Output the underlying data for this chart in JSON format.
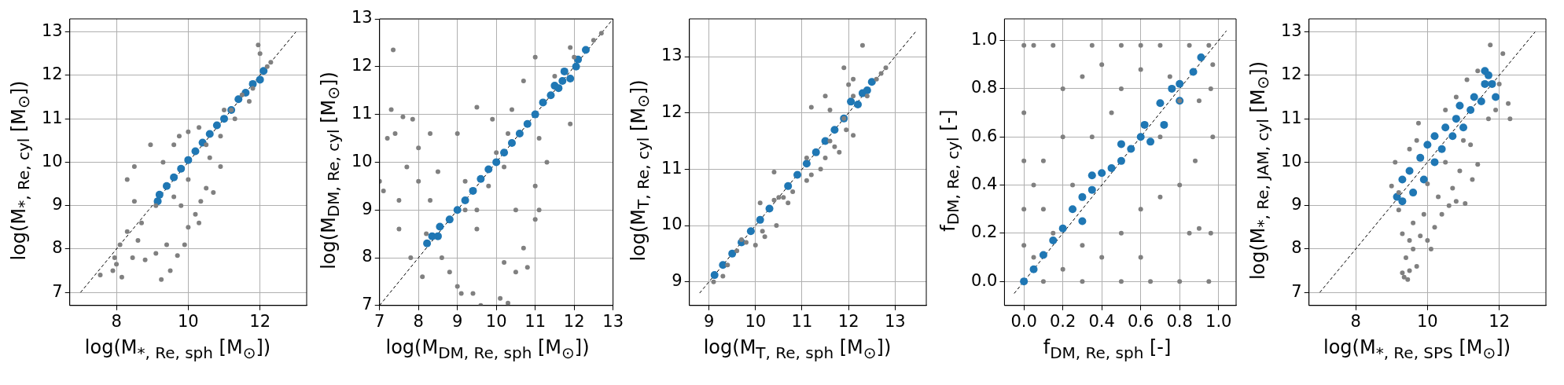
{
  "chart_data": [
    {
      "type": "scatter",
      "xlabel": "log(M$_{*, Re, sph}$ [M$_{⊙}$])",
      "xlim": [
        6.7,
        13.3
      ],
      "ylim": [
        6.7,
        13.3
      ],
      "xticks": [
        8,
        10,
        12
      ],
      "yticks": [
        7,
        8,
        9,
        10,
        11,
        12,
        13
      ],
      "grid": true,
      "ylabel": "log(M$_{*, Re, cyl}$ [M$_{⊙}$])",
      "series": [
        {
          "type": "scatter",
          "color": "#808080",
          "marker": "circle",
          "x": [
            7.55,
            7.9,
            8.15,
            8.0,
            7.95,
            8.1,
            8.3,
            8.45,
            8.6,
            8.7,
            8.8,
            9.1,
            9.25,
            9.5,
            9.4,
            9.7,
            9.9,
            10.0,
            10.2,
            10.3,
            9.1,
            8.5,
            8.3,
            8.5,
            8.95,
            9.3,
            9.6,
            9.75,
            10.0,
            10.3,
            10.5,
            10.9,
            10.7,
            10.35,
            10.6,
            10.9,
            11.2,
            11.3,
            11.5,
            11.7,
            11.8,
            11.95,
            12.0,
            12.2,
            12.3,
            10.0,
            9.6,
            9.8,
            10.5,
            11.0
          ],
          "values": [
            7.4,
            7.5,
            7.35,
            7.65,
            7.8,
            8.1,
            8.4,
            7.8,
            8.2,
            8.6,
            7.75,
            7.9,
            7.3,
            7.5,
            8.1,
            7.85,
            8.1,
            8.5,
            8.8,
            8.6,
            9.0,
            9.1,
            9.6,
            9.9,
            10.4,
            10.0,
            10.4,
            10.6,
            10.7,
            10.8,
            9.4,
            9.9,
            9.3,
            9.1,
            10.1,
            10.6,
            11.2,
            11.0,
            11.55,
            11.4,
            11.7,
            12.7,
            12.5,
            12.2,
            12.3,
            9.6,
            9.2,
            9.0,
            10.4,
            11.2
          ]
        },
        {
          "type": "scatter",
          "color": "#1f77b4",
          "marker": "circle",
          "x": [
            9.15,
            9.2,
            9.4,
            9.6,
            9.8,
            10.0,
            10.2,
            10.4,
            10.6,
            10.8,
            11.0,
            11.2,
            11.4,
            11.6,
            11.8,
            12.1,
            12.0
          ],
          "values": [
            9.1,
            9.25,
            9.45,
            9.65,
            9.85,
            10.05,
            10.25,
            10.45,
            10.65,
            10.85,
            11.0,
            11.2,
            11.45,
            11.6,
            11.8,
            12.1,
            11.9
          ]
        },
        {
          "type": "line",
          "color": "#000000",
          "marker": "none",
          "line_style": "dashed",
          "x": [
            7,
            13
          ],
          "values": [
            7,
            13
          ]
        }
      ]
    },
    {
      "type": "scatter",
      "xlabel": "log(M$_{DM, Re, sph}$ [M$_{⊙}$])",
      "xlim": [
        7,
        13
      ],
      "ylim": [
        7,
        13
      ],
      "xticks": [
        7,
        8,
        9,
        10,
        11,
        12,
        13
      ],
      "yticks": [
        7,
        8,
        9,
        10,
        11,
        12,
        13
      ],
      "grid": true,
      "ylabel": "log(M$_{DM, Re, cyl}$ [M$_{⊙}$])",
      "series": [
        {
          "type": "scatter",
          "color": "#808080",
          "marker": "circle",
          "x": [
            7.0,
            7.1,
            7.3,
            7.35,
            7.2,
            7.4,
            7.6,
            7.85,
            7.5,
            7.5,
            7.8,
            7.7,
            8.0,
            8.0,
            8.1,
            8.2,
            8.3,
            8.3,
            8.5,
            8.6,
            8.8,
            9.0,
            9.1,
            9.4,
            9.6,
            10.1,
            10.3,
            9.0,
            9.5,
            9.9,
            10.4,
            10.2,
            10.5,
            10.7,
            10.8,
            10.5,
            11.0,
            11.1,
            11.0,
            11.3,
            11.1,
            10.7,
            11.0,
            11.5,
            11.9,
            12.0,
            12.5,
            12.7,
            11.9,
            9.5,
            9.8,
            10.2,
            10.0,
            9.2,
            9.2,
            9.5,
            10.3
          ],
          "values": [
            9.6,
            9.4,
            11.1,
            12.35,
            10.5,
            10.6,
            10.95,
            10.9,
            9.2,
            8.6,
            8.0,
            9.9,
            9.6,
            10.3,
            7.6,
            8.5,
            9.2,
            10.6,
            9.8,
            8.0,
            7.7,
            7.4,
            7.25,
            7.25,
            7.0,
            7.15,
            7.05,
            10.6,
            11.15,
            10.9,
            11.1,
            7.9,
            7.7,
            8.2,
            7.8,
            9.0,
            8.8,
            9.0,
            9.5,
            10.0,
            10.5,
            11.7,
            12.2,
            11.8,
            12.4,
            12.2,
            12.55,
            12.7,
            10.8,
            9.0,
            9.5,
            9.9,
            10.2,
            9.0,
            9.6,
            8.6,
            10.6
          ]
        },
        {
          "type": "scatter",
          "color": "#1f77b4",
          "marker": "circle",
          "x": [
            8.22,
            8.35,
            8.5,
            8.55,
            8.8,
            9.0,
            9.2,
            9.4,
            9.6,
            9.8,
            10.0,
            10.2,
            10.4,
            10.6,
            10.8,
            11.0,
            11.2,
            11.4,
            11.5,
            11.6,
            11.7,
            11.75,
            11.9,
            12.05,
            12.1,
            12.3
          ],
          "values": [
            8.3,
            8.45,
            8.45,
            8.65,
            8.8,
            9.0,
            9.2,
            9.4,
            9.65,
            9.85,
            10.0,
            10.2,
            10.4,
            10.6,
            10.8,
            11.0,
            11.25,
            11.4,
            11.6,
            11.55,
            11.7,
            11.9,
            11.75,
            12.0,
            12.15,
            12.35
          ]
        },
        {
          "type": "line",
          "color": "#000000",
          "marker": "none",
          "line_style": "dashed",
          "x": [
            7,
            13
          ],
          "values": [
            7,
            13
          ]
        }
      ]
    },
    {
      "type": "scatter",
      "xlabel": "log(M$_{T, Re, sph}$ [M$_{⊙}$])",
      "xlim": [
        8.58,
        13.67
      ],
      "ylim": [
        8.58,
        13.67
      ],
      "xticks": [
        9,
        10,
        11,
        12,
        13
      ],
      "yticks": [
        9,
        10,
        11,
        12,
        13
      ],
      "grid": true,
      "ylabel": "log(M$_{T, Re, cyl}$ [M$_{⊙}$])",
      "series": [
        {
          "type": "scatter",
          "color": "#808080",
          "marker": "circle",
          "x": [
            9.1,
            9.3,
            9.4,
            9.6,
            9.8,
            10.0,
            10.2,
            10.15,
            10.1,
            10.4,
            10.45,
            10.7,
            10.6,
            10.8,
            10.4,
            11.1,
            11.2,
            11.4,
            11.5,
            11.7,
            11.8,
            11.6,
            11.1,
            11.2,
            11.5,
            11.6,
            11.95,
            12.1,
            11.9,
            12.1,
            12.0,
            12.3,
            12.4,
            12.6,
            12.8,
            12.7,
            12.1,
            11.9,
            10.5,
            9.7
          ],
          "values": [
            9.0,
            9.1,
            9.3,
            9.55,
            9.7,
            9.65,
            9.8,
            9.9,
            10.4,
            10.45,
            10.0,
            10.4,
            10.5,
            10.6,
            10.95,
            10.8,
            10.9,
            11.0,
            11.2,
            11.4,
            11.3,
            11.5,
            11.2,
            12.1,
            12.3,
            12.05,
            11.7,
            11.6,
            12.8,
            12.6,
            12.5,
            13.2,
            12.3,
            12.6,
            12.8,
            12.7,
            12.3,
            11.9,
            10.5,
            9.75
          ]
        },
        {
          "type": "scatter",
          "color": "#1f77b4",
          "marker": "circle",
          "x": [
            9.12,
            9.3,
            9.5,
            9.7,
            9.9,
            10.1,
            10.3,
            10.7,
            10.9,
            11.1,
            11.3,
            11.5,
            11.7,
            11.9,
            12.05,
            12.2,
            12.3,
            12.4,
            12.5
          ],
          "values": [
            9.12,
            9.3,
            9.5,
            9.7,
            9.9,
            10.1,
            10.3,
            10.7,
            10.9,
            11.1,
            11.3,
            11.5,
            11.7,
            11.9,
            12.2,
            12.15,
            12.35,
            12.4,
            12.55
          ]
        },
        {
          "type": "line",
          "color": "#000000",
          "marker": "none",
          "line_style": "dashed",
          "x": [
            8.8,
            13.45
          ],
          "values": [
            8.8,
            13.45
          ]
        }
      ]
    },
    {
      "type": "scatter",
      "xlabel": "f$_{DM, Re, sph}$ [-]",
      "xlim": [
        -0.1,
        1.09
      ],
      "ylim": [
        -0.1,
        1.09
      ],
      "xticks": [
        {
          "value": 0,
          "label": "0.0"
        },
        0.2,
        0.4,
        0.6,
        0.8,
        {
          "value": 1,
          "label": "1.0"
        }
      ],
      "yticks": [
        {
          "value": 0,
          "label": "0.0"
        },
        0.2,
        0.4,
        0.6,
        0.8,
        {
          "value": 1,
          "label": "1.0"
        }
      ],
      "grid": true,
      "ylabel": "f$_{DM, Re, cyl}$ [-]",
      "series": [
        {
          "type": "scatter",
          "color": "#808080",
          "marker": "circle",
          "x": [
            0.0,
            0.0,
            0.0,
            0.0,
            0.0,
            0.05,
            0.15,
            0.35,
            0.5,
            0.6,
            0.7,
            0.85,
            0.95,
            0.97,
            0.96,
            0.97,
            0.9,
            0.1,
            0.3,
            0.5,
            0.65,
            0.8,
            0.95,
            0.1,
            0.2,
            0.25,
            0.3,
            0.4,
            0.5,
            0.6,
            0.7,
            0.8,
            0.85,
            0.9,
            0.96,
            0.6,
            0.5,
            0.4,
            0.3,
            0.1,
            0.2,
            0.15,
            0.05,
            0.35,
            0.45,
            0.7,
            0.6,
            0.8,
            0.88,
            0.75,
            0.2,
            0.05
          ],
          "values": [
            0.98,
            0.7,
            0.5,
            0.3,
            0.15,
            0.98,
            0.98,
            0.98,
            0.98,
            0.98,
            0.98,
            0.98,
            0.98,
            0.9,
            0.8,
            0.6,
            0.75,
            0.0,
            0.0,
            0.0,
            0.0,
            0.0,
            0.0,
            0.5,
            0.8,
            0.4,
            0.85,
            0.9,
            0.8,
            0.88,
            0.6,
            0.4,
            0.2,
            0.22,
            0.2,
            0.3,
            0.2,
            0.1,
            0.15,
            0.3,
            0.6,
            0.2,
            0.1,
            0.6,
            0.7,
            0.35,
            0.1,
            0.75,
            0.5,
            0.85,
            0.05,
            0.4
          ]
        },
        {
          "type": "scatter",
          "color": "#1f77b4",
          "marker": "circle",
          "x": [
            0.0,
            0.05,
            0.1,
            0.15,
            0.2,
            0.25,
            0.3,
            0.35,
            0.4,
            0.45,
            0.5,
            0.55,
            0.6,
            0.62,
            0.65,
            0.7,
            0.72,
            0.76,
            0.8,
            0.8,
            0.87,
            0.91,
            0.5,
            0.3,
            0.35
          ],
          "values": [
            0.0,
            0.05,
            0.11,
            0.17,
            0.22,
            0.3,
            0.35,
            0.38,
            0.45,
            0.47,
            0.5,
            0.55,
            0.6,
            0.65,
            0.58,
            0.74,
            0.65,
            0.8,
            0.75,
            0.82,
            0.87,
            0.93,
            0.57,
            0.25,
            0.44
          ]
        },
        {
          "type": "line",
          "color": "#000000",
          "marker": "none",
          "line_style": "dashed",
          "x": [
            -0.05,
            1.04
          ],
          "values": [
            -0.05,
            1.04
          ]
        }
      ]
    },
    {
      "type": "scatter",
      "xlabel": "log(M$_{*, Re, SPS}$ [M$_{⊙}$])",
      "xlim": [
        6.7,
        13.3
      ],
      "ylim": [
        6.7,
        13.3
      ],
      "xticks": [
        8,
        10,
        12
      ],
      "yticks": [
        7,
        8,
        9,
        10,
        11,
        12,
        13
      ],
      "grid": true,
      "ylabel": "log(M$_{*, Re, JAM, cyl}$ [M$_{⊙}$])",
      "series": [
        {
          "type": "scatter",
          "color": "#808080",
          "marker": "circle",
          "x": [
            9.0,
            9.2,
            9.3,
            9.3,
            9.35,
            9.45,
            9.5,
            9.4,
            9.5,
            9.6,
            9.7,
            9.6,
            9.8,
            10.0,
            10.1,
            9.9,
            10.2,
            10.4,
            10.3,
            10.6,
            10.8,
            11.05,
            10.7,
            10.9,
            11.25,
            11.4,
            11.2,
            9.1,
            9.5,
            9.7,
            9.75,
            10.5,
            10.8,
            11.1,
            11.4,
            11.75,
            12.1,
            12.0,
            12.25,
            12.3,
            11.9,
            11.7,
            9.2,
            10.0,
            10.5,
            11.0
          ],
          "values": [
            9.45,
            8.9,
            8.35,
            7.45,
            7.35,
            7.3,
            7.5,
            7.8,
            8.2,
            8.0,
            7.6,
            8.6,
            8.3,
            8.2,
            8.0,
            8.8,
            8.5,
            8.8,
            9.2,
            9.0,
            9.1,
            9.05,
            9.4,
            9.8,
            9.6,
            9.95,
            10.4,
            10.0,
            10.3,
            10.5,
            10.9,
            11.2,
            11.5,
            11.9,
            12.1,
            12.7,
            12.5,
            11.8,
            11.35,
            11.0,
            11.2,
            11.0,
            9.3,
            9.5,
            10.0,
            10.5
          ]
        },
        {
          "type": "scatter",
          "color": "#1f77b4",
          "marker": "circle",
          "x": [
            9.15,
            9.3,
            9.3,
            9.6,
            9.5,
            9.8,
            9.9,
            10.0,
            10.2,
            10.2,
            10.4,
            10.5,
            10.7,
            10.8,
            10.9,
            11.0,
            11.2,
            11.3,
            11.5,
            11.6,
            11.6,
            11.8,
            11.9,
            11.7
          ],
          "values": [
            9.2,
            9.1,
            9.6,
            9.3,
            9.8,
            10.1,
            9.6,
            10.4,
            10.0,
            10.6,
            10.3,
            10.8,
            10.6,
            11.0,
            11.3,
            10.8,
            11.2,
            11.5,
            11.4,
            11.8,
            12.1,
            11.8,
            11.5,
            12.0
          ]
        },
        {
          "type": "line",
          "color": "#000000",
          "marker": "none",
          "line_style": "dashed",
          "x": [
            7,
            13
          ],
          "values": [
            7,
            13
          ]
        }
      ]
    }
  ]
}
